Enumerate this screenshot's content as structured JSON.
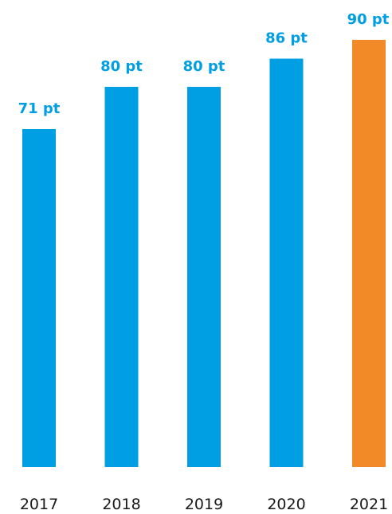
{
  "chart_data": {
    "type": "bar",
    "title": "",
    "xlabel": "",
    "ylabel": "",
    "categories": [
      "2017",
      "2018",
      "2019",
      "2020",
      "2021"
    ],
    "values": [
      71,
      80,
      80,
      86,
      90
    ],
    "value_labels": [
      "71 pt",
      "80 pt",
      "80 pt",
      "86 pt",
      "90 pt"
    ],
    "unit": "pt",
    "highlight_index": 4,
    "grid": false,
    "legend": "none",
    "colors": {
      "bar": "#009fe3",
      "highlight": "#f28a27",
      "label": "#009fe3",
      "highlight_label": "#009fe3",
      "tick": "#1a1a1a"
    }
  }
}
